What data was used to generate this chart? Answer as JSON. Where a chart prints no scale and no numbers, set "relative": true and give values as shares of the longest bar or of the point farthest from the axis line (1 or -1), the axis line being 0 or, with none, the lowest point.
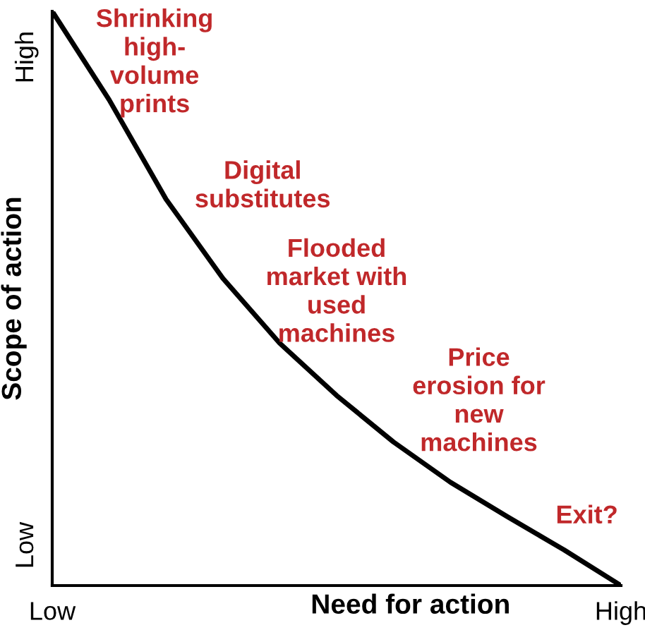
{
  "chart_data": {
    "type": "line",
    "xlabel": "Need for action",
    "ylabel": "Scope of action",
    "relative": true,
    "categories": [
      "Low",
      null,
      null,
      null,
      null,
      null,
      null,
      null,
      null,
      null,
      "High"
    ],
    "series": [
      {
        "color": "#000000",
        "values": [
          1,
          0.846,
          0.673,
          0.535,
          0.422,
          0.331,
          0.25,
          0.18,
          0.12,
          0.062,
          0
        ]
      }
    ],
    "grid": false,
    "legend": false,
    "marker": "none",
    "line_style": "solid",
    "annotations": [
      "Shrinking\nhigh-\nvolume\nprints",
      "Digital\nsubstitutes",
      "Flooded\nmarket with\nused\nmachines",
      "Price\nerosion for\nnew\nmachines",
      "Exit?",
      "High",
      "Low"
    ]
  }
}
